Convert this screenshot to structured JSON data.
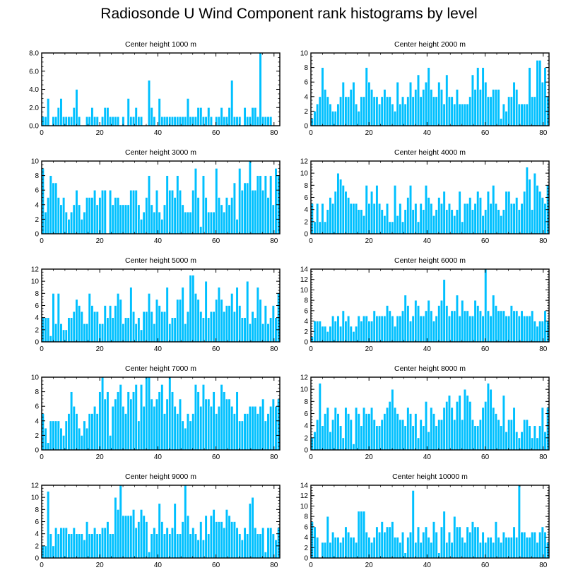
{
  "title": "Radiosonde U Wind Component rank histograms by level",
  "colors": {
    "bar": "#00c0ff",
    "bar_edge": "#ffffff",
    "frame": "#000000"
  },
  "chart_data": [
    {
      "type": "bar",
      "title": "Center height 1000 m",
      "xlim": [
        0,
        82
      ],
      "ylim": [
        0,
        8
      ],
      "xticks": [
        0,
        20,
        40,
        60,
        80
      ],
      "yticks": [
        0,
        2,
        4,
        6,
        8
      ],
      "ytick_labels": [
        "0.0",
        "2.0",
        "4.0",
        "6.0",
        "8.0"
      ],
      "values": [
        1,
        1,
        3,
        0,
        1,
        1,
        2,
        3,
        1,
        1,
        1,
        1,
        2,
        4,
        1,
        0,
        0,
        1,
        1,
        2,
        1,
        1,
        0,
        1,
        2,
        2,
        1,
        1,
        1,
        1,
        0,
        1,
        0,
        3,
        1,
        1,
        2,
        1,
        1,
        0,
        0,
        5,
        2,
        1,
        0,
        3,
        1,
        1,
        1,
        1,
        1,
        1,
        1,
        1,
        1,
        1,
        3,
        1,
        1,
        1,
        2,
        2,
        1,
        1,
        2,
        1,
        0,
        1,
        1,
        2,
        1,
        1,
        2,
        5,
        1,
        1,
        1,
        0,
        2,
        1,
        1,
        2,
        2,
        1,
        8,
        1,
        1,
        1,
        1,
        0,
        0,
        0
      ]
    },
    {
      "type": "bar",
      "title": "Center height 2000 m",
      "xlim": [
        0,
        82
      ],
      "ylim": [
        0,
        10
      ],
      "xticks": [
        0,
        20,
        40,
        60,
        80
      ],
      "yticks": [
        0,
        2,
        4,
        6,
        8,
        10
      ],
      "ytick_labels": [
        "0",
        "2",
        "4",
        "6",
        "8",
        "10"
      ],
      "values": [
        1,
        2,
        3,
        4,
        8,
        5,
        4,
        3,
        2,
        2,
        3,
        4,
        6,
        4,
        4,
        5,
        6,
        3,
        2,
        4,
        4,
        8,
        6,
        5,
        4,
        4,
        3,
        4,
        5,
        4,
        4,
        3,
        2,
        6,
        3,
        4,
        3,
        4,
        6,
        4,
        5,
        7,
        4,
        5,
        6,
        8,
        5,
        4,
        4,
        6,
        5,
        3,
        7,
        4,
        4,
        3,
        5,
        3,
        3,
        3,
        3,
        4,
        7,
        5,
        8,
        5,
        8,
        6,
        4,
        4,
        5,
        5,
        5,
        1,
        3,
        2,
        4,
        4,
        6,
        5,
        3,
        3,
        3,
        3,
        8,
        4,
        4,
        9,
        9,
        6,
        8,
        4
      ]
    },
    {
      "type": "bar",
      "title": "Center height 3000 m",
      "xlim": [
        0,
        82
      ],
      "ylim": [
        0,
        10
      ],
      "xticks": [
        0,
        20,
        40,
        60,
        80
      ],
      "yticks": [
        0,
        2,
        4,
        6,
        8,
        10
      ],
      "ytick_labels": [
        "0",
        "2",
        "4",
        "6",
        "8",
        "10"
      ],
      "values": [
        9,
        3,
        5,
        8,
        7,
        7,
        5,
        4,
        5,
        3,
        2,
        3,
        4,
        6,
        4,
        2,
        3,
        5,
        5,
        5,
        6,
        4,
        5,
        6,
        6,
        0,
        6,
        4,
        5,
        5,
        4,
        4,
        4,
        4,
        6,
        6,
        6,
        4,
        2,
        3,
        5,
        8,
        4,
        3,
        6,
        3,
        2,
        4,
        8,
        6,
        6,
        5,
        8,
        6,
        4,
        3,
        3,
        3,
        6,
        9,
        5,
        1,
        8,
        5,
        3,
        3,
        3,
        9,
        5,
        4,
        3,
        5,
        4,
        5,
        7,
        2,
        9,
        6,
        7,
        7,
        10,
        6,
        6,
        8,
        8,
        6,
        8,
        5,
        8,
        4,
        9,
        8
      ]
    },
    {
      "type": "bar",
      "title": "Center height 4000 m",
      "xlim": [
        0,
        82
      ],
      "ylim": [
        0,
        12
      ],
      "xticks": [
        0,
        20,
        40,
        60,
        80
      ],
      "yticks": [
        0,
        2,
        4,
        6,
        8,
        10,
        12
      ],
      "ytick_labels": [
        "0",
        "2",
        "4",
        "6",
        "8",
        "10",
        "12"
      ],
      "values": [
        5,
        2,
        5,
        2,
        5,
        2,
        4,
        6,
        5,
        7,
        10,
        9,
        8,
        7,
        6,
        5,
        5,
        5,
        4,
        4,
        3,
        8,
        5,
        7,
        5,
        8,
        5,
        4,
        3,
        5,
        2,
        2,
        8,
        3,
        5,
        2,
        4,
        6,
        8,
        4,
        5,
        2,
        5,
        4,
        8,
        6,
        5,
        3,
        4,
        6,
        5,
        7,
        4,
        5,
        4,
        3,
        4,
        7,
        2,
        5,
        5,
        6,
        4,
        5,
        7,
        6,
        3,
        4,
        7,
        5,
        8,
        5,
        4,
        3,
        4,
        7,
        7,
        5,
        5,
        6,
        4,
        5,
        7,
        11,
        9,
        4,
        10,
        8,
        7,
        6,
        5,
        8
      ]
    },
    {
      "type": "bar",
      "title": "Center height 5000 m",
      "xlim": [
        0,
        82
      ],
      "ylim": [
        0,
        12
      ],
      "xticks": [
        0,
        20,
        40,
        60,
        80
      ],
      "yticks": [
        0,
        2,
        4,
        6,
        8,
        10,
        12
      ],
      "ytick_labels": [
        "0",
        "2",
        "4",
        "6",
        "8",
        "10",
        "12"
      ],
      "values": [
        4,
        4,
        4,
        1,
        8,
        3,
        8,
        3,
        2,
        2,
        4,
        4,
        5,
        7,
        6,
        5,
        3,
        3,
        8,
        6,
        5,
        5,
        3,
        3,
        6,
        4,
        6,
        4,
        6,
        8,
        7,
        3,
        4,
        4,
        9,
        5,
        3,
        4,
        2,
        5,
        5,
        8,
        5,
        3,
        7,
        6,
        5,
        5,
        9,
        3,
        4,
        4,
        7,
        7,
        9,
        3,
        5,
        11,
        11,
        8,
        7,
        5,
        4,
        10,
        4,
        5,
        5,
        7,
        9,
        7,
        5,
        6,
        6,
        8,
        5,
        9,
        6,
        4,
        4,
        10,
        3,
        5,
        4,
        9,
        7,
        3,
        6,
        3,
        4,
        6,
        4,
        8
      ]
    },
    {
      "type": "bar",
      "title": "Center height 6000 m",
      "xlim": [
        0,
        82
      ],
      "ylim": [
        0,
        14
      ],
      "xticks": [
        0,
        20,
        40,
        60,
        80
      ],
      "yticks": [
        0,
        2,
        4,
        6,
        8,
        10,
        12,
        14
      ],
      "ytick_labels": [
        "0",
        "2",
        "4",
        "6",
        "8",
        "10",
        "12",
        "14"
      ],
      "values": [
        1,
        4,
        4,
        4,
        3,
        3,
        2,
        3,
        5,
        4,
        5,
        3,
        6,
        4,
        5,
        3,
        2,
        3,
        5,
        4,
        5,
        5,
        4,
        4,
        6,
        5,
        5,
        5,
        5,
        7,
        6,
        5,
        3,
        5,
        5,
        6,
        9,
        7,
        4,
        5,
        8,
        7,
        5,
        5,
        6,
        8,
        6,
        4,
        5,
        7,
        8,
        12,
        7,
        5,
        6,
        6,
        9,
        5,
        8,
        6,
        6,
        5,
        5,
        8,
        7,
        6,
        5,
        14,
        6,
        5,
        9,
        7,
        6,
        6,
        6,
        5,
        5,
        7,
        6,
        6,
        5,
        6,
        5,
        5,
        5,
        6,
        4,
        3,
        4,
        4,
        6,
        4
      ]
    },
    {
      "type": "bar",
      "title": "Center height 7000 m",
      "xlim": [
        0,
        82
      ],
      "ylim": [
        0,
        10
      ],
      "xticks": [
        0,
        20,
        40,
        60,
        80
      ],
      "yticks": [
        0,
        2,
        4,
        6,
        8,
        10
      ],
      "ytick_labels": [
        "0",
        "2",
        "4",
        "6",
        "8",
        "10"
      ],
      "values": [
        5,
        3,
        1,
        4,
        4,
        4,
        4,
        3,
        2,
        4,
        5,
        8,
        6,
        5,
        3,
        2,
        4,
        3,
        5,
        5,
        6,
        5,
        8,
        10,
        7,
        8,
        2,
        6,
        7,
        8,
        9,
        6,
        5,
        8,
        7,
        8,
        9,
        4,
        9,
        6,
        10,
        10,
        7,
        6,
        7,
        8,
        9,
        5,
        7,
        10,
        8,
        6,
        5,
        7,
        4,
        3,
        5,
        4,
        5,
        9,
        8,
        6,
        9,
        7,
        7,
        6,
        8,
        5,
        6,
        9,
        8,
        7,
        7,
        6,
        5,
        8,
        4,
        4,
        5,
        5,
        6,
        6,
        6,
        5,
        6,
        7,
        4,
        5,
        6,
        7,
        6,
        7
      ]
    },
    {
      "type": "bar",
      "title": "Center height 8000 m",
      "xlim": [
        0,
        82
      ],
      "ylim": [
        0,
        12
      ],
      "xticks": [
        0,
        20,
        40,
        60,
        80
      ],
      "yticks": [
        0,
        2,
        4,
        6,
        8,
        10,
        12
      ],
      "ytick_labels": [
        "0",
        "2",
        "4",
        "6",
        "8",
        "10",
        "12"
      ],
      "values": [
        2,
        3,
        5,
        11,
        4,
        6,
        7,
        3,
        5,
        7,
        6,
        4,
        2,
        7,
        6,
        5,
        1,
        7,
        6,
        4,
        7,
        6,
        6,
        7,
        5,
        4,
        4,
        5,
        6,
        7,
        8,
        10,
        7,
        6,
        5,
        5,
        4,
        7,
        6,
        4,
        6,
        2,
        5,
        4,
        8,
        3,
        7,
        6,
        4,
        5,
        5,
        7,
        8,
        9,
        7,
        5,
        8,
        9,
        5,
        10,
        9,
        8,
        5,
        4,
        4,
        5,
        7,
        8,
        11,
        10,
        7,
        6,
        5,
        4,
        9,
        3,
        5,
        5,
        7,
        3,
        2,
        3,
        5,
        5,
        4,
        2,
        4,
        2,
        4,
        7,
        3,
        7
      ]
    },
    {
      "type": "bar",
      "title": "Center height 9000 m",
      "xlim": [
        0,
        82
      ],
      "ylim": [
        0,
        12
      ],
      "xticks": [
        0,
        20,
        40,
        60,
        80
      ],
      "yticks": [
        0,
        2,
        4,
        6,
        8,
        10,
        12
      ],
      "ytick_labels": [
        "0",
        "2",
        "4",
        "6",
        "8",
        "10",
        "12"
      ],
      "values": [
        2,
        2,
        11,
        4,
        2,
        5,
        4,
        5,
        5,
        5,
        4,
        4,
        5,
        4,
        4,
        4,
        3,
        6,
        4,
        4,
        5,
        4,
        4,
        5,
        5,
        6,
        4,
        4,
        10,
        8,
        12,
        7,
        7,
        7,
        7,
        8,
        5,
        6,
        8,
        7,
        6,
        1,
        4,
        5,
        4,
        9,
        6,
        4,
        5,
        4,
        5,
        9,
        4,
        4,
        6,
        12,
        7,
        4,
        5,
        4,
        3,
        6,
        3,
        7,
        4,
        7,
        8,
        6,
        6,
        6,
        5,
        8,
        7,
        6,
        6,
        5,
        4,
        3,
        5,
        4,
        9,
        10,
        5,
        4,
        4,
        5,
        1,
        5,
        5,
        4,
        3,
        5
      ]
    },
    {
      "type": "bar",
      "title": "Center height 10000 m",
      "xlim": [
        0,
        82
      ],
      "ylim": [
        0,
        14
      ],
      "xticks": [
        0,
        20,
        40,
        60,
        80
      ],
      "yticks": [
        0,
        2,
        4,
        6,
        8,
        10,
        12,
        14
      ],
      "ytick_labels": [
        "0",
        "2",
        "4",
        "6",
        "8",
        "10",
        "12",
        "14"
      ],
      "values": [
        7,
        6,
        4,
        0,
        3,
        3,
        8,
        3,
        5,
        4,
        4,
        3,
        4,
        6,
        5,
        4,
        4,
        3,
        9,
        9,
        9,
        5,
        4,
        3,
        4,
        6,
        5,
        7,
        5,
        6,
        6,
        7,
        4,
        4,
        3,
        5,
        1,
        4,
        5,
        13,
        3,
        6,
        3,
        5,
        6,
        4,
        3,
        7,
        5,
        1,
        6,
        9,
        3,
        5,
        3,
        8,
        6,
        6,
        4,
        3,
        6,
        5,
        7,
        6,
        6,
        3,
        5,
        3,
        4,
        4,
        3,
        7,
        4,
        3,
        5,
        4,
        4,
        4,
        6,
        4,
        14,
        5,
        5,
        4,
        4,
        5,
        5,
        3,
        5,
        6,
        5,
        3
      ]
    }
  ]
}
